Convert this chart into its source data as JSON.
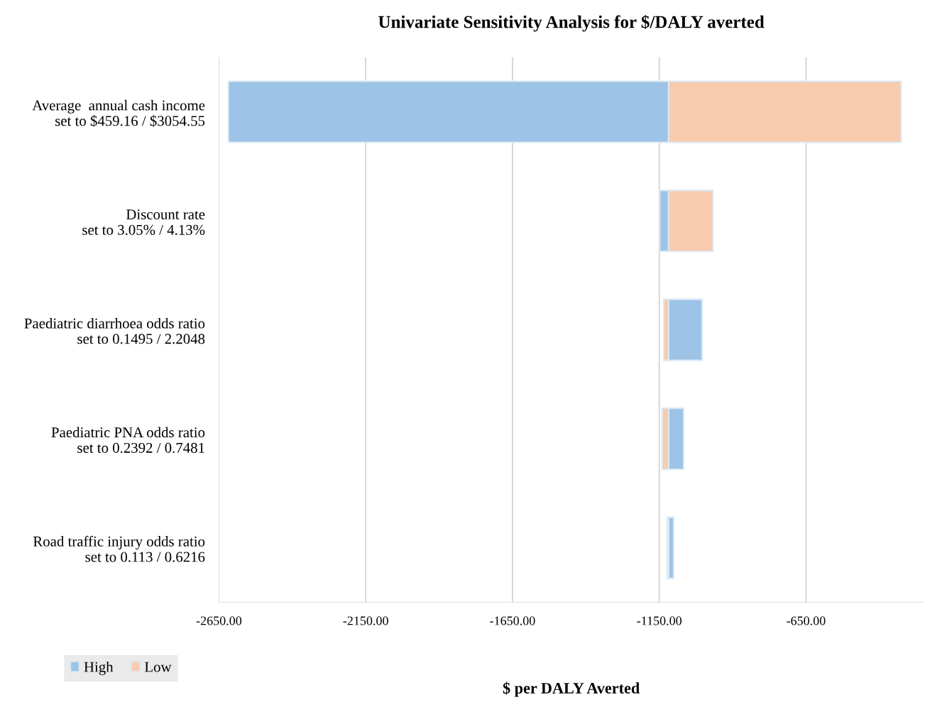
{
  "chart_data": {
    "type": "bar",
    "orientation": "horizontal",
    "title": "Univariate Sensitivity Analysis for $/DALY averted",
    "xlabel": "$ per DALY Averted",
    "categories": [
      "Average  annual cash income\nset to $459.16 / $3054.55",
      "Discount rate\nset to 3.05% / 4.13%",
      "Paediatric diarrhoea odds ratio\nset to 0.1495 / 2.2048",
      "Paediatric PNA odds ratio\nset to 0.2392 / 0.7481",
      "Road traffic injury odds ratio\nset to 0.113 / 0.6216"
    ],
    "series": [
      {
        "name": "High",
        "color": "#9dc3e6",
        "base": [
          -1118,
          -1118,
          -1118,
          -1118,
          -1118
        ],
        "values": [
          -1500,
          -30,
          114,
          51,
          17
        ]
      },
      {
        "name": "Low",
        "color": "#f8cbad",
        "base": [
          -1118,
          -1118,
          -1118,
          -1118,
          -1118
        ],
        "values": [
          792,
          151,
          -17,
          -22,
          -5
        ]
      }
    ],
    "xlim": [
      -2650,
      -250
    ],
    "xticks": [
      {
        "value": -2650,
        "label": "-2650.00"
      },
      {
        "value": -2150,
        "label": "-2150.00"
      },
      {
        "value": -1650,
        "label": "-1650.00"
      },
      {
        "value": -1150,
        "label": "-1150.00"
      },
      {
        "value": -650,
        "label": "-650.00"
      }
    ],
    "grid": "x",
    "legend": "bottom left"
  }
}
